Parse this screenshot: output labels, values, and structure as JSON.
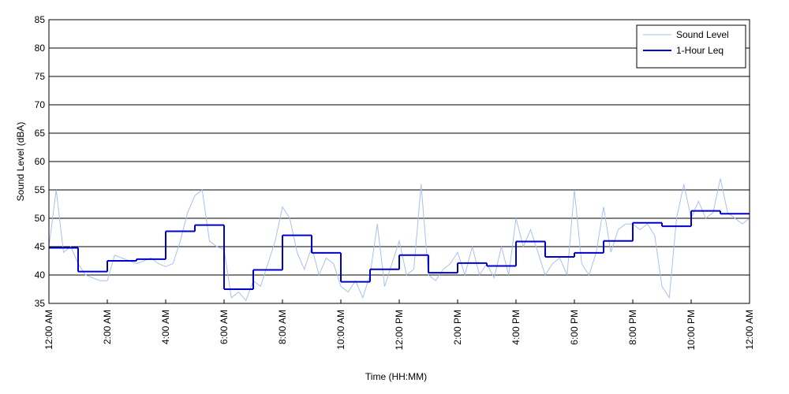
{
  "chart_data": {
    "type": "line",
    "xlabel": "Time (HH:MM)",
    "ylabel": "Sound Level (dBA)",
    "xlim": [
      0,
      24
    ],
    "xticks": [
      {
        "value": 0,
        "label": "12:00 AM"
      },
      {
        "value": 2,
        "label": "2:00 AM"
      },
      {
        "value": 4,
        "label": "4:00 AM"
      },
      {
        "value": 6,
        "label": "6:00 AM"
      },
      {
        "value": 8,
        "label": "8:00 AM"
      },
      {
        "value": 10,
        "label": "10:00 AM"
      },
      {
        "value": 12,
        "label": "12:00 PM"
      },
      {
        "value": 14,
        "label": "2:00 PM"
      },
      {
        "value": 16,
        "label": "4:00 PM"
      },
      {
        "value": 18,
        "label": "6:00 PM"
      },
      {
        "value": 20,
        "label": "8:00 PM"
      },
      {
        "value": 22,
        "label": "10:00 PM"
      },
      {
        "value": 24,
        "label": "12:00 AM"
      }
    ],
    "ylim": [
      35,
      85
    ],
    "yticks": [
      35,
      40,
      45,
      50,
      55,
      60,
      65,
      70,
      75,
      80,
      85
    ],
    "grid": true,
    "legend": "upper right",
    "series": [
      {
        "name": "Sound Level",
        "color": "#a8c0f0",
        "x": [
          0,
          0.25,
          0.5,
          0.75,
          1,
          1.25,
          1.5,
          1.75,
          2,
          2.25,
          2.5,
          2.75,
          3,
          3.25,
          3.5,
          3.75,
          4,
          4.25,
          4.5,
          4.75,
          5,
          5.25,
          5.5,
          5.75,
          6,
          6.25,
          6.5,
          6.75,
          7,
          7.25,
          7.5,
          7.75,
          8,
          8.25,
          8.5,
          8.75,
          9,
          9.25,
          9.5,
          9.75,
          10,
          10.25,
          10.5,
          10.75,
          11,
          11.25,
          11.5,
          11.75,
          12,
          12.25,
          12.5,
          12.75,
          13,
          13.25,
          13.5,
          13.75,
          14,
          14.25,
          14.5,
          14.75,
          15,
          15.25,
          15.5,
          15.75,
          16,
          16.25,
          16.5,
          16.75,
          17,
          17.25,
          17.5,
          17.75,
          18,
          18.25,
          18.5,
          18.75,
          19,
          19.25,
          19.5,
          19.75,
          20,
          20.25,
          20.5,
          20.75,
          21,
          21.25,
          21.5,
          21.75,
          22,
          22.25,
          22.5,
          22.75,
          23,
          23.25,
          23.5,
          23.75,
          24
        ],
        "values": [
          45,
          55,
          44,
          45,
          42,
          40,
          39.5,
          39,
          39,
          43.5,
          43,
          42.5,
          42,
          42.5,
          43,
          42,
          41.5,
          42,
          46,
          51,
          54,
          55,
          46,
          45,
          44.5,
          36,
          37,
          35.5,
          39,
          38,
          42,
          46,
          52,
          50,
          44,
          41,
          45,
          40,
          43,
          42,
          38,
          37,
          39,
          36,
          40,
          49,
          38,
          42,
          46,
          40,
          41,
          56,
          40,
          39,
          41,
          42,
          44,
          40,
          45,
          40,
          42,
          39.5,
          45,
          40,
          50,
          45,
          48,
          44,
          40,
          42,
          43,
          40,
          55,
          42,
          40,
          44,
          52,
          44,
          48,
          49,
          49,
          48,
          49,
          47,
          38,
          36,
          50,
          56,
          50,
          53,
          50,
          51,
          57,
          51,
          50,
          49,
          50
        ]
      },
      {
        "name": "1-Hour Leq",
        "color": "#0000cc",
        "step": "post",
        "x": [
          0,
          1,
          2,
          3,
          4,
          5,
          6,
          7,
          8,
          9,
          10,
          11,
          12,
          13,
          14,
          15,
          16,
          17,
          18,
          19,
          20,
          21,
          22,
          23
        ],
        "values": [
          44.8,
          40.6,
          42.5,
          42.8,
          47.7,
          48.8,
          37.5,
          40.9,
          47.0,
          43.9,
          38.8,
          41.0,
          43.5,
          40.4,
          42.1,
          41.6,
          45.9,
          43.2,
          43.9,
          46.0,
          49.2,
          48.6,
          51.3,
          50.8
        ]
      }
    ]
  }
}
